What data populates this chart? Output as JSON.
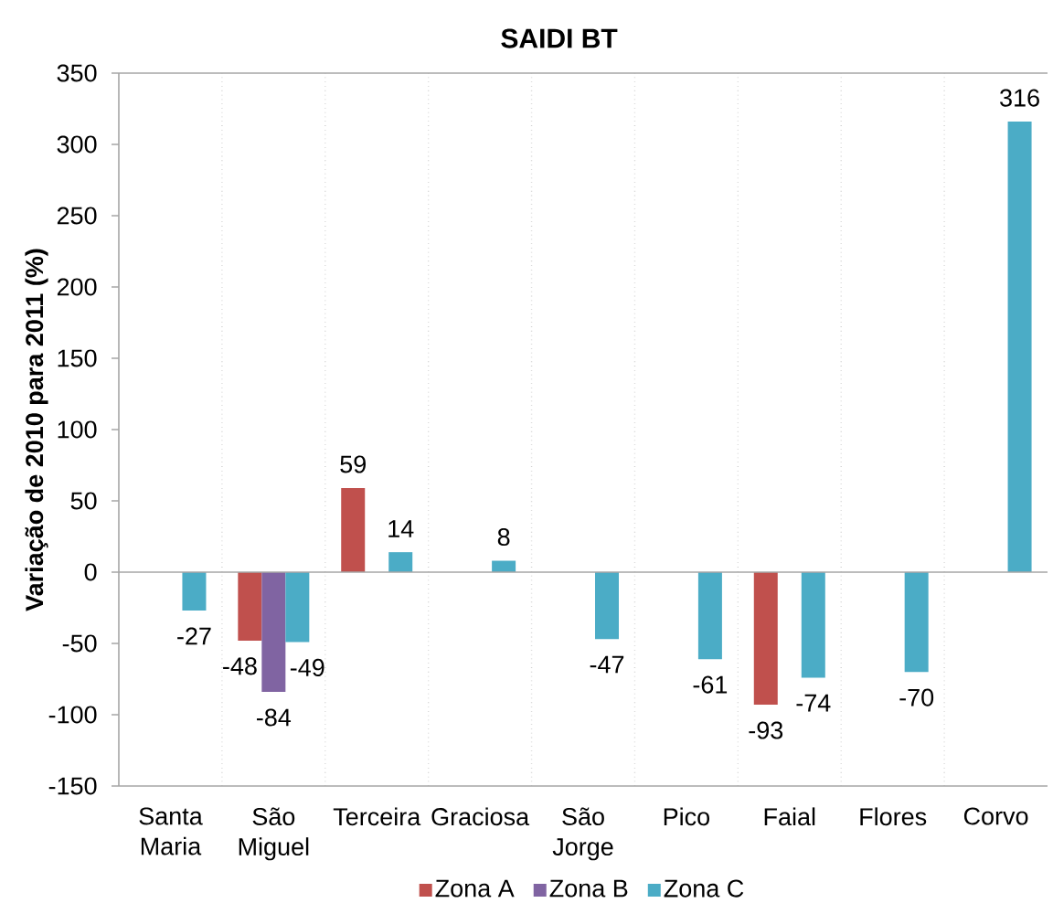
{
  "chart_data": {
    "type": "bar",
    "title": "SAIDI BT",
    "ylabel": "Variação de 2010 para 2011 (%)",
    "categories": [
      "Santa Maria",
      "São Miguel",
      "Terceira",
      "Graciosa",
      "São Jorge",
      "Pico",
      "Faial",
      "Flores",
      "Corvo"
    ],
    "series": [
      {
        "name": "Zona A",
        "color": "#c0504d",
        "values": [
          null,
          -48,
          59,
          null,
          null,
          null,
          -93,
          null,
          null
        ]
      },
      {
        "name": "Zona B",
        "color": "#8064a2",
        "values": [
          null,
          -84,
          null,
          null,
          null,
          null,
          null,
          null,
          null
        ]
      },
      {
        "name": "Zona C",
        "color": "#4bacc6",
        "values": [
          -27,
          -49,
          14,
          8,
          -47,
          -61,
          -74,
          -70,
          316
        ]
      }
    ],
    "ylim": [
      -150,
      350
    ],
    "yticks": [
      -150,
      -100,
      -50,
      0,
      50,
      100,
      150,
      200,
      250,
      300,
      350
    ],
    "grid": "x",
    "legend": "bottom",
    "data_labels": true
  }
}
